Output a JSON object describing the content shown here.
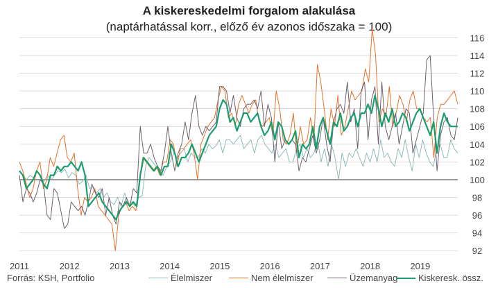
{
  "chart_data": {
    "type": "line",
    "title": "A kiskereskedelmi forgalom alakulása",
    "subtitle": "(naptárhatással korr., előző év azonos időszaka = 100)",
    "source": "Forrás: KSH, Portfolio",
    "x_ticks": [
      "2011",
      "2012",
      "2013",
      "2014",
      "2015",
      "2016",
      "2017",
      "2018",
      "2019"
    ],
    "y_ticks": [
      92,
      94,
      96,
      98,
      100,
      102,
      104,
      106,
      108,
      110,
      112,
      114,
      116
    ],
    "ylim": [
      91,
      116.5
    ],
    "xlim": [
      2011.0,
      2019.75
    ],
    "grid": true,
    "legend_position": "bottom",
    "series": [
      {
        "name": "Élelmiszer",
        "color": "#8fb9b8",
        "width": 1,
        "values": [
          101.0,
          100.5,
          100.0,
          100.5,
          100.2,
          101.0,
          100.3,
          99.8,
          100.5,
          100.0,
          100.5,
          101.0,
          100.8,
          101.2,
          100.2,
          100.8,
          100.5,
          99.5,
          99.8,
          100.5,
          99.0,
          99.2,
          98.5,
          99.0,
          98.0,
          98.5,
          97.5,
          97.2,
          98.0,
          97.0,
          98.5,
          97.2,
          97.5,
          97.0,
          98.0,
          98.2,
          101.5,
          102.5,
          102.0,
          101.5,
          101.0,
          100.5,
          101.5,
          102.0,
          103.0,
          102.5,
          103.0,
          103.5,
          102.0,
          103.0,
          102.5,
          102.5,
          103.5,
          103.0,
          104.0,
          103.5,
          103.8,
          104.5,
          103.0,
          104.5,
          104.5,
          104.0,
          104.5,
          105.0,
          103.5,
          104.0,
          104.5,
          103.0,
          104.5,
          105.0,
          104.0,
          103.5,
          103.0,
          104.0,
          102.5,
          103.0,
          103.5,
          102.0,
          102.0,
          103.5,
          104.0,
          102.5,
          103.5,
          102.5,
          103.0,
          104.5,
          102.0,
          103.5,
          101.5,
          104.0,
          102.5,
          100.0,
          103.0,
          101.5,
          103.0,
          102.5,
          103.5,
          102.5,
          101.5,
          103.0,
          102.0,
          103.5,
          102.0,
          104.5,
          102.5,
          103.0,
          102.0,
          101.5,
          103.5,
          102.5,
          104.5,
          102.5,
          101.0,
          104.0,
          102.5,
          104.5,
          103.0,
          102.0,
          101.5,
          103.5,
          104.0,
          102.5,
          102.5,
          104.5,
          103.5,
          103.0
        ]
      },
      {
        "name": "Nem élelmiszer",
        "color": "#e8702a",
        "width": 1,
        "values": [
          102.0,
          101.0,
          99.5,
          98.0,
          99.0,
          101.0,
          102.0,
          99.0,
          100.0,
          102.5,
          101.5,
          103.0,
          104.5,
          105.0,
          102.5,
          102.0,
          103.0,
          99.0,
          96.0,
          98.0,
          97.5,
          98.0,
          99.0,
          97.0,
          96.5,
          96.0,
          95.5,
          95.0,
          92.0,
          96.0,
          97.0,
          97.5,
          96.5,
          97.0,
          96.5,
          100.0,
          102.5,
          102.0,
          101.5,
          101.0,
          101.5,
          100.5,
          102.0,
          102.0,
          104.5,
          104.0,
          101.5,
          103.5,
          103.5,
          104.0,
          104.5,
          103.0,
          100.0,
          104.0,
          105.0,
          106.0,
          106.5,
          107.0,
          109.0,
          110.5,
          110.0,
          107.0,
          107.5,
          106.0,
          108.5,
          109.5,
          108.5,
          107.5,
          108.5,
          109.0,
          106.5,
          106.0,
          106.5,
          107.0,
          105.0,
          110.0,
          108.0,
          104.5,
          104.0,
          105.0,
          107.5,
          103.0,
          106.0,
          104.0,
          104.5,
          107.0,
          104.5,
          113.0,
          111.0,
          108.0,
          104.5,
          108.0,
          106.0,
          109.5,
          105.0,
          106.0,
          108.0,
          110.0,
          109.0,
          109.5,
          110.0,
          112.5,
          111.0,
          117.0,
          114.0,
          106.5,
          108.0,
          107.0,
          110.5,
          106.0,
          107.5,
          109.5,
          108.5,
          106.5,
          109.0,
          110.0,
          108.0,
          108.0,
          107.0,
          106.5,
          107.0,
          102.5,
          107.0,
          108.5,
          108.5,
          109.0,
          109.5,
          110.0,
          108.5
        ]
      },
      {
        "name": "Üzemanyag",
        "color": "#6f5e6f",
        "width": 1,
        "values": [
          100.5,
          97.5,
          99.0,
          98.5,
          97.5,
          98.5,
          100.0,
          99.5,
          96.0,
          95.5,
          99.0,
          98.5,
          96.5,
          94.5,
          95.0,
          97.5,
          97.0,
          96.5,
          97.0,
          96.0,
          97.5,
          99.5,
          98.5,
          98.0,
          99.0,
          96.0,
          98.0,
          96.0,
          95.0,
          97.5,
          97.0,
          98.0,
          97.0,
          99.0,
          98.5,
          106.0,
          103.0,
          103.0,
          104.0,
          102.5,
          101.5,
          101.0,
          103.0,
          106.0,
          103.0,
          101.0,
          103.0,
          104.0,
          106.5,
          104.5,
          107.5,
          109.5,
          106.0,
          105.0,
          106.0,
          105.5,
          106.0,
          106.5,
          110.5,
          110.5,
          110.0,
          107.5,
          109.5,
          107.0,
          106.0,
          108.0,
          108.5,
          108.5,
          109.0,
          108.0,
          110.0,
          106.0,
          108.5,
          107.0,
          102.0,
          106.5,
          103.5,
          104.5,
          104.0,
          104.5,
          104.0,
          101.0,
          102.5,
          102.0,
          103.5,
          105.0,
          103.0,
          104.5,
          107.0,
          104.0,
          102.0,
          106.5,
          108.0,
          108.5,
          107.5,
          111.0,
          106.5,
          108.0,
          103.5,
          110.0,
          111.0,
          104.5,
          109.0,
          110.5,
          104.0,
          111.0,
          106.0,
          104.5,
          106.0,
          107.5,
          104.0,
          106.0,
          108.0,
          107.5,
          103.0,
          104.5,
          106.0,
          107.5,
          113.5,
          114.0,
          107.0,
          101.0,
          105.0,
          106.5,
          107.0,
          105.0,
          104.5,
          107.0
        ]
      },
      {
        "name": "Kiskeresk. össz.",
        "color": "#1a9e6e",
        "width": 2.2,
        "values": [
          101.0,
          100.5,
          99.0,
          99.5,
          100.0,
          101.0,
          100.5,
          99.5,
          99.0,
          100.5,
          100.5,
          101.5,
          101.0,
          101.5,
          101.5,
          102.0,
          101.5,
          101.0,
          102.0,
          100.5,
          97.0,
          97.5,
          98.0,
          98.5,
          97.5,
          97.0,
          96.5,
          96.0,
          95.5,
          96.5,
          97.0,
          97.5,
          97.0,
          97.5,
          97.0,
          100.5,
          102.5,
          102.0,
          101.5,
          101.0,
          101.5,
          100.5,
          101.5,
          101.5,
          104.0,
          103.0,
          101.5,
          102.5,
          102.5,
          103.0,
          104.0,
          103.0,
          102.0,
          103.0,
          104.0,
          105.0,
          105.5,
          106.0,
          108.0,
          109.0,
          108.5,
          106.5,
          107.0,
          105.5,
          106.5,
          107.5,
          107.5,
          106.5,
          107.0,
          107.5,
          106.0,
          105.0,
          105.5,
          106.5,
          104.5,
          106.5,
          106.0,
          104.5,
          104.0,
          104.5,
          105.5,
          102.5,
          104.0,
          103.5,
          104.0,
          106.0,
          103.5,
          106.0,
          107.0,
          105.5,
          104.0,
          106.5,
          106.0,
          107.5,
          105.5,
          106.0,
          107.0,
          107.5,
          106.0,
          107.5,
          107.5,
          108.5,
          107.5,
          109.5,
          108.0,
          106.0,
          107.5,
          106.5,
          108.0,
          106.0,
          106.5,
          107.5,
          107.0,
          105.5,
          106.5,
          107.5,
          108.0,
          107.0,
          106.0,
          105.0,
          106.5,
          103.0,
          106.0,
          107.5,
          106.5,
          106.0,
          106.0,
          106.0
        ]
      }
    ]
  }
}
